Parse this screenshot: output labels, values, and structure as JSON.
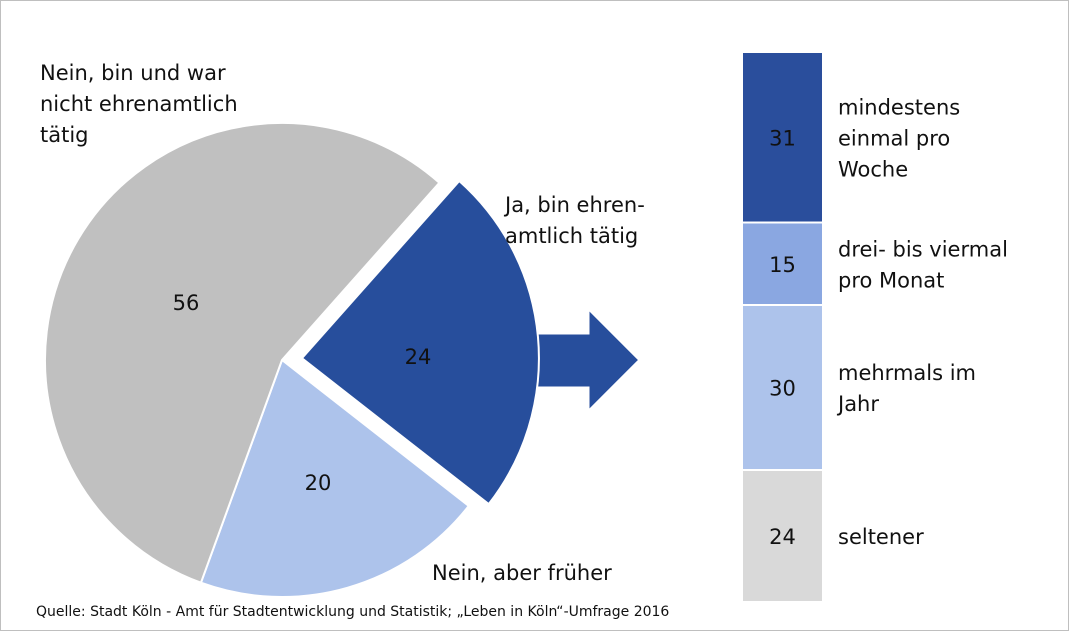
{
  "chart_data": [
    {
      "type": "pie",
      "labels": [
        "Ja, bin ehren-\namtlich tätig",
        "Nein, aber früher",
        "Nein, bin und war\nnicht ehrenamtlich\ntätig"
      ],
      "values": [
        24,
        20,
        56
      ],
      "colors": [
        "#274e9c",
        "#adc3eb",
        "#c0c0c0"
      ],
      "explode": [
        true,
        false,
        false
      ]
    },
    {
      "type": "bar",
      "stacked": true,
      "categories": [
        "mindestens\neinmal pro\nWoche",
        "drei- bis viermal\npro Monat",
        "mehrmals im\nJahr",
        "seltener"
      ],
      "values": [
        31,
        15,
        30,
        24
      ],
      "colors": [
        "#2a4e9c",
        "#8aa7e1",
        "#adc3eb",
        "#d9d9d9"
      ]
    }
  ],
  "source": "Quelle: Stadt Köln - Amt für Stadtentwicklung und Statistik; „Leben in Köln“-Umfrage 2016"
}
